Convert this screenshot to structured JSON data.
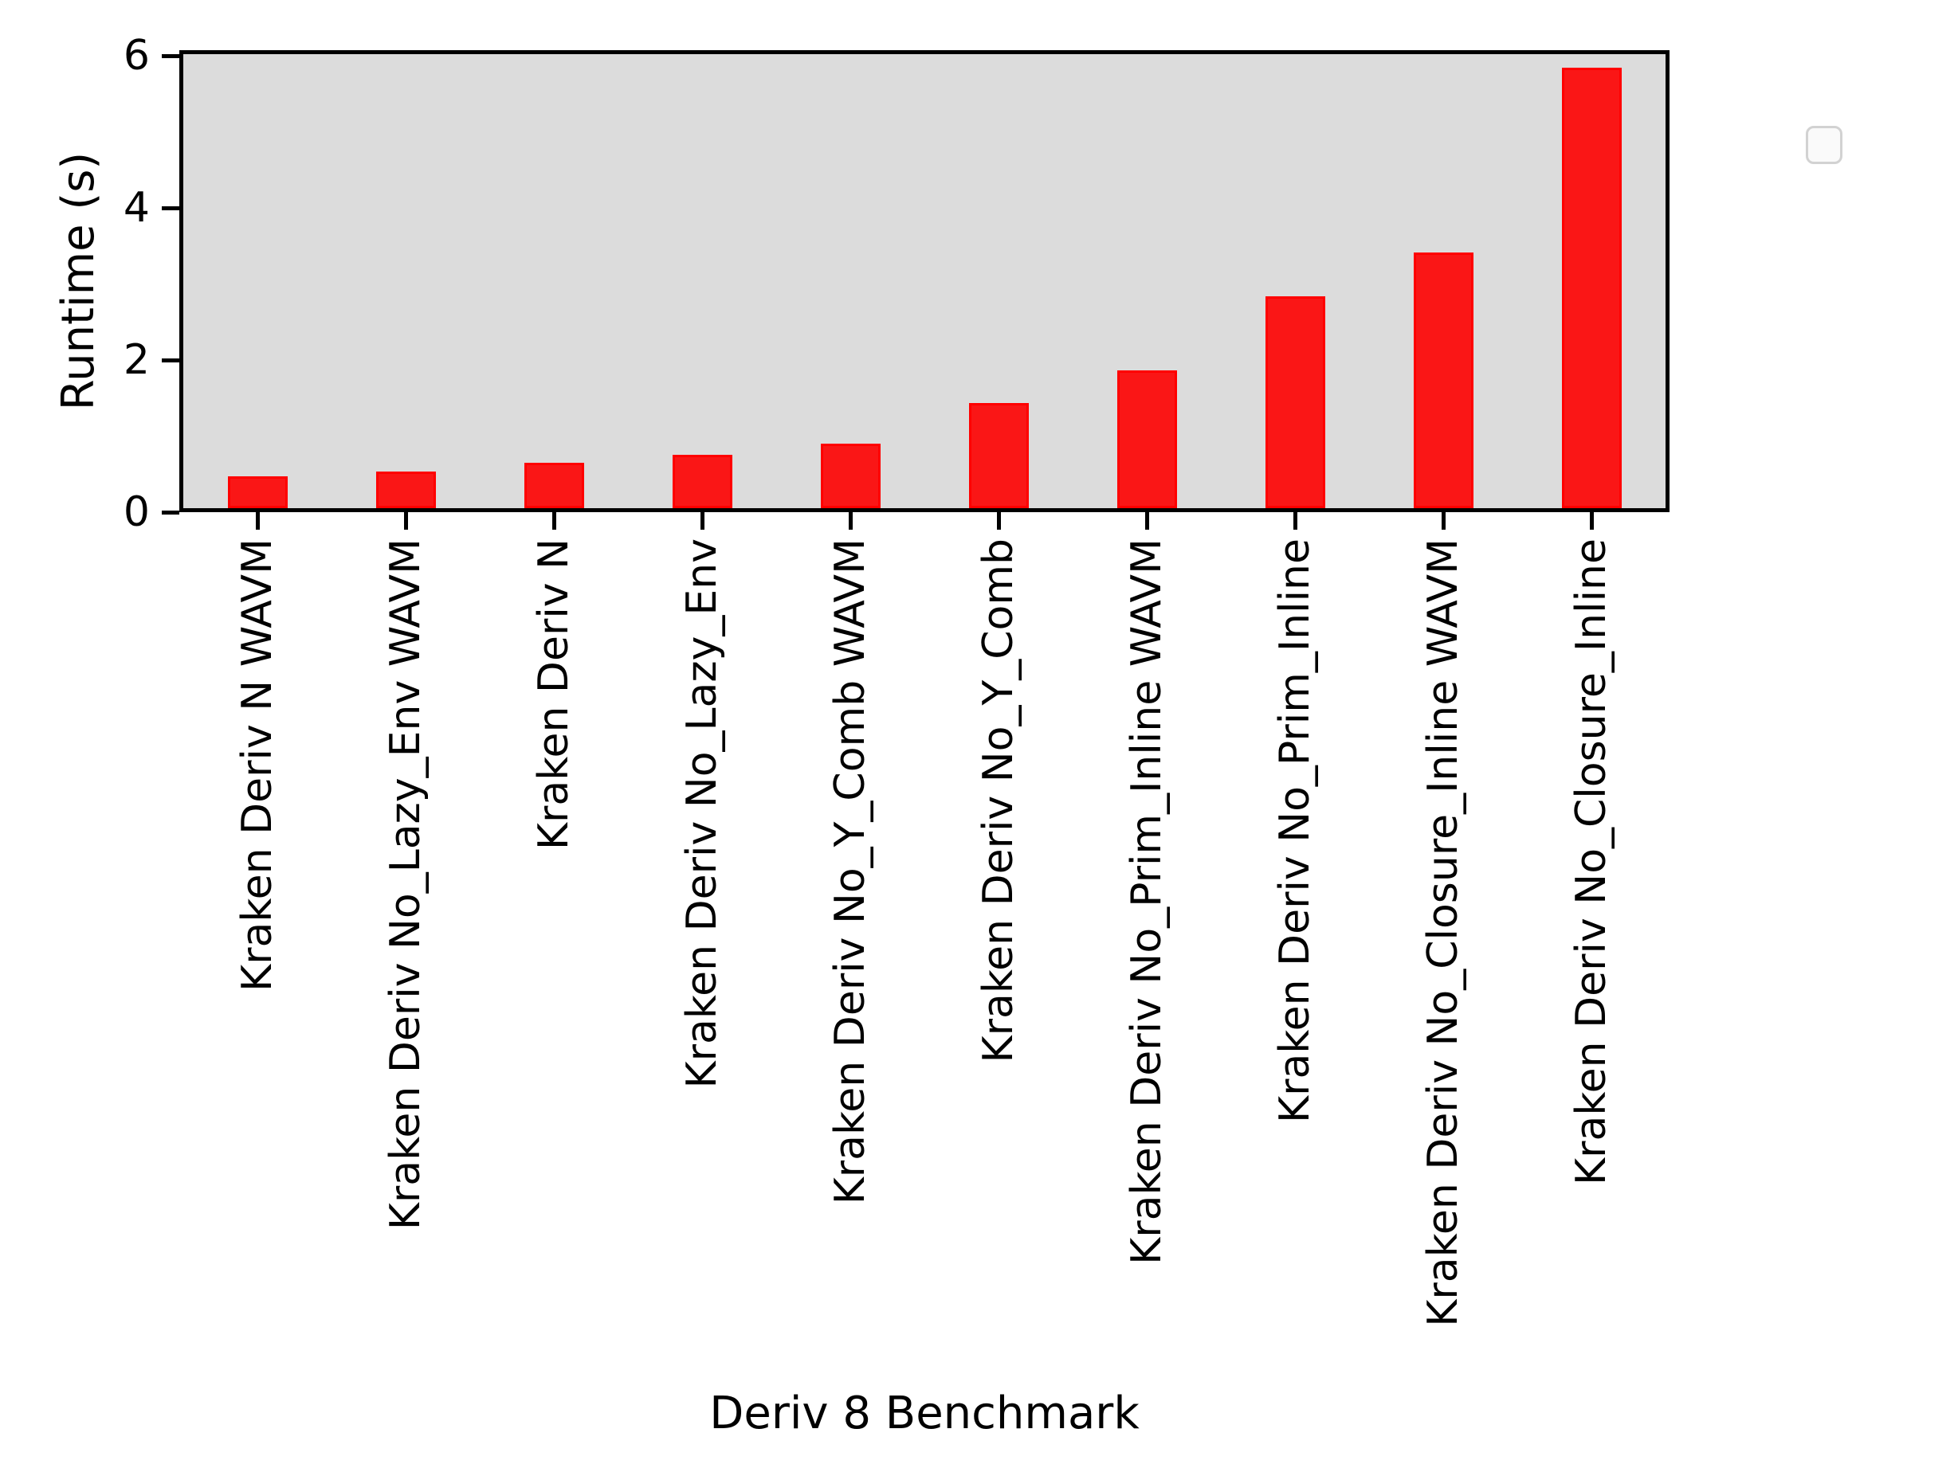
{
  "figure": {
    "background": "#ffffff",
    "plot_background": "#dcdcdc",
    "spine_color": "#000000"
  },
  "legend": {
    "visible": true,
    "entries": []
  },
  "chart_data": {
    "type": "bar",
    "title": "",
    "xlabel": "Deriv 8 Benchmark",
    "ylabel": "Runtime (s)",
    "ylim": [
      0,
      6.08
    ],
    "yticks": [
      0,
      2,
      4,
      6
    ],
    "ytick_labels": [
      "0",
      "2",
      "4",
      "6"
    ],
    "grid": false,
    "legend_position": "upper right",
    "bar_color": "#fa1616",
    "bar_edge_color": "#ff0000",
    "categories": [
      "Kraken Deriv N WAVM",
      "Kraken Deriv No_Lazy_Env WAVM",
      "Kraken Deriv N",
      "Kraken Deriv No_Lazy_Env",
      "Kraken Deriv No_Y_Comb WAVM",
      "Kraken Deriv No_Y_Comb",
      "Kraken Deriv No_Prim_Inline WAVM",
      "Kraken Deriv No_Prim_Inline",
      "Kraken Deriv No_Closure_Inline WAVM",
      "Kraken Deriv No_Closure_Inline"
    ],
    "values": [
      0.42,
      0.48,
      0.6,
      0.7,
      0.85,
      1.38,
      1.81,
      2.79,
      3.36,
      5.79
    ]
  }
}
